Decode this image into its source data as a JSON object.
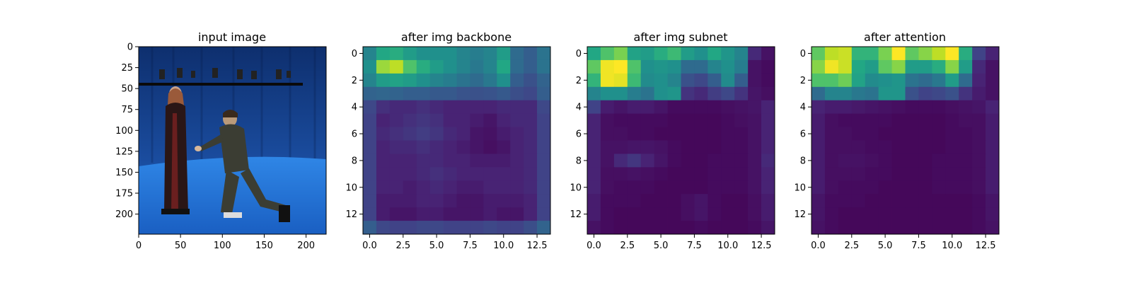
{
  "chart_data": [
    {
      "type": "image",
      "title": "input image",
      "x_ticks": [
        0,
        50,
        100,
        150,
        200
      ],
      "y_ticks": [
        0,
        25,
        50,
        75,
        100,
        125,
        150,
        175,
        200
      ],
      "xlim": [
        0,
        224
      ],
      "ylim": [
        224,
        0
      ],
      "scene": {
        "background_color": "#123a8a",
        "floor_color": "#1f6fd0",
        "figures": [
          "standing woman in dark red gown",
          "kneeling man in dark coat"
        ]
      }
    },
    {
      "type": "heatmap",
      "title": "after img backbone",
      "colormap": "viridis",
      "rows": 14,
      "cols": 14,
      "x_ticks": [
        0.0,
        2.5,
        5.0,
        7.5,
        10.0,
        12.5
      ],
      "y_ticks": [
        0,
        2,
        4,
        6,
        8,
        10,
        12
      ],
      "values": [
        [
          0.45,
          0.6,
          0.62,
          0.55,
          0.5,
          0.5,
          0.5,
          0.45,
          0.42,
          0.45,
          0.55,
          0.35,
          0.3,
          0.38
        ],
        [
          0.5,
          0.85,
          0.9,
          0.72,
          0.62,
          0.55,
          0.5,
          0.45,
          0.4,
          0.45,
          0.6,
          0.35,
          0.3,
          0.38
        ],
        [
          0.45,
          0.55,
          0.58,
          0.55,
          0.5,
          0.45,
          0.42,
          0.38,
          0.35,
          0.4,
          0.5,
          0.3,
          0.25,
          0.32
        ],
        [
          0.32,
          0.33,
          0.32,
          0.3,
          0.3,
          0.28,
          0.28,
          0.26,
          0.25,
          0.26,
          0.28,
          0.24,
          0.22,
          0.3
        ],
        [
          0.22,
          0.14,
          0.12,
          0.12,
          0.14,
          0.12,
          0.1,
          0.1,
          0.1,
          0.1,
          0.12,
          0.12,
          0.12,
          0.22
        ],
        [
          0.2,
          0.1,
          0.12,
          0.14,
          0.16,
          0.14,
          0.1,
          0.1,
          0.08,
          0.06,
          0.1,
          0.12,
          0.12,
          0.2
        ],
        [
          0.2,
          0.12,
          0.14,
          0.16,
          0.18,
          0.16,
          0.12,
          0.1,
          0.06,
          0.05,
          0.08,
          0.1,
          0.12,
          0.2
        ],
        [
          0.2,
          0.1,
          0.12,
          0.12,
          0.14,
          0.12,
          0.1,
          0.08,
          0.06,
          0.04,
          0.06,
          0.1,
          0.12,
          0.2
        ],
        [
          0.2,
          0.1,
          0.1,
          0.1,
          0.12,
          0.12,
          0.1,
          0.1,
          0.08,
          0.08,
          0.08,
          0.1,
          0.12,
          0.2
        ],
        [
          0.2,
          0.1,
          0.1,
          0.1,
          0.12,
          0.14,
          0.12,
          0.1,
          0.1,
          0.1,
          0.1,
          0.1,
          0.12,
          0.2
        ],
        [
          0.2,
          0.1,
          0.1,
          0.08,
          0.1,
          0.12,
          0.1,
          0.08,
          0.08,
          0.1,
          0.1,
          0.1,
          0.12,
          0.2
        ],
        [
          0.2,
          0.08,
          0.08,
          0.08,
          0.1,
          0.1,
          0.08,
          0.06,
          0.06,
          0.08,
          0.08,
          0.08,
          0.1,
          0.2
        ],
        [
          0.2,
          0.08,
          0.06,
          0.06,
          0.08,
          0.08,
          0.06,
          0.06,
          0.06,
          0.08,
          0.06,
          0.06,
          0.1,
          0.2
        ],
        [
          0.3,
          0.22,
          0.2,
          0.2,
          0.22,
          0.22,
          0.2,
          0.2,
          0.2,
          0.22,
          0.2,
          0.2,
          0.24,
          0.32
        ]
      ]
    },
    {
      "type": "heatmap",
      "title": "after img subnet",
      "colormap": "viridis",
      "rows": 14,
      "cols": 14,
      "x_ticks": [
        0.0,
        2.5,
        5.0,
        7.5,
        10.0,
        12.5
      ],
      "y_ticks": [
        0,
        2,
        4,
        6,
        8,
        10,
        12
      ],
      "values": [
        [
          0.6,
          0.72,
          0.8,
          0.58,
          0.55,
          0.62,
          0.68,
          0.55,
          0.5,
          0.6,
          0.52,
          0.45,
          0.12,
          0.05
        ],
        [
          0.75,
          0.98,
          1.0,
          0.72,
          0.5,
          0.52,
          0.5,
          0.35,
          0.35,
          0.45,
          0.5,
          0.42,
          0.05,
          0.03
        ],
        [
          0.65,
          0.98,
          0.96,
          0.68,
          0.48,
          0.5,
          0.45,
          0.25,
          0.22,
          0.3,
          0.48,
          0.3,
          0.05,
          0.03
        ],
        [
          0.45,
          0.5,
          0.5,
          0.42,
          0.38,
          0.5,
          0.52,
          0.15,
          0.12,
          0.18,
          0.22,
          0.15,
          0.06,
          0.04
        ],
        [
          0.2,
          0.08,
          0.06,
          0.08,
          0.08,
          0.06,
          0.03,
          0.03,
          0.03,
          0.03,
          0.04,
          0.05,
          0.06,
          0.1
        ],
        [
          0.1,
          0.04,
          0.03,
          0.03,
          0.03,
          0.03,
          0.02,
          0.02,
          0.02,
          0.02,
          0.03,
          0.04,
          0.05,
          0.1
        ],
        [
          0.1,
          0.04,
          0.04,
          0.03,
          0.03,
          0.02,
          0.02,
          0.02,
          0.02,
          0.02,
          0.03,
          0.03,
          0.05,
          0.1
        ],
        [
          0.1,
          0.05,
          0.05,
          0.06,
          0.06,
          0.05,
          0.03,
          0.02,
          0.02,
          0.02,
          0.03,
          0.03,
          0.05,
          0.1
        ],
        [
          0.1,
          0.05,
          0.12,
          0.16,
          0.1,
          0.06,
          0.03,
          0.02,
          0.02,
          0.03,
          0.03,
          0.03,
          0.05,
          0.12
        ],
        [
          0.1,
          0.04,
          0.04,
          0.05,
          0.04,
          0.03,
          0.02,
          0.02,
          0.02,
          0.03,
          0.03,
          0.03,
          0.05,
          0.1
        ],
        [
          0.1,
          0.04,
          0.03,
          0.03,
          0.03,
          0.02,
          0.02,
          0.02,
          0.02,
          0.03,
          0.03,
          0.03,
          0.05,
          0.1
        ],
        [
          0.08,
          0.03,
          0.03,
          0.03,
          0.02,
          0.02,
          0.02,
          0.04,
          0.06,
          0.03,
          0.02,
          0.02,
          0.04,
          0.08
        ],
        [
          0.08,
          0.03,
          0.02,
          0.02,
          0.02,
          0.02,
          0.02,
          0.04,
          0.06,
          0.03,
          0.02,
          0.02,
          0.04,
          0.08
        ],
        [
          0.05,
          0.03,
          0.02,
          0.02,
          0.02,
          0.02,
          0.02,
          0.02,
          0.03,
          0.02,
          0.02,
          0.02,
          0.03,
          0.06
        ]
      ]
    },
    {
      "type": "heatmap",
      "title": "after attention",
      "colormap": "viridis",
      "rows": 14,
      "cols": 14,
      "x_ticks": [
        0.0,
        2.5,
        5.0,
        7.5,
        10.0,
        12.5
      ],
      "y_ticks": [
        0,
        2,
        4,
        6,
        8,
        10,
        12
      ],
      "values": [
        [
          0.75,
          0.9,
          0.92,
          0.65,
          0.65,
          0.8,
          1.0,
          0.75,
          0.82,
          0.9,
          1.0,
          0.62,
          0.2,
          0.1
        ],
        [
          0.82,
          0.98,
          0.92,
          0.6,
          0.55,
          0.75,
          0.82,
          0.55,
          0.55,
          0.62,
          0.82,
          0.55,
          0.12,
          0.05
        ],
        [
          0.72,
          0.72,
          0.78,
          0.58,
          0.48,
          0.5,
          0.52,
          0.38,
          0.35,
          0.4,
          0.55,
          0.35,
          0.1,
          0.05
        ],
        [
          0.35,
          0.45,
          0.45,
          0.4,
          0.38,
          0.52,
          0.52,
          0.25,
          0.2,
          0.22,
          0.25,
          0.15,
          0.08,
          0.05
        ],
        [
          0.1,
          0.08,
          0.08,
          0.07,
          0.06,
          0.05,
          0.04,
          0.03,
          0.03,
          0.03,
          0.04,
          0.05,
          0.06,
          0.1
        ],
        [
          0.08,
          0.04,
          0.03,
          0.03,
          0.03,
          0.03,
          0.02,
          0.02,
          0.02,
          0.02,
          0.03,
          0.04,
          0.04,
          0.08
        ],
        [
          0.08,
          0.04,
          0.04,
          0.03,
          0.03,
          0.02,
          0.02,
          0.02,
          0.02,
          0.02,
          0.03,
          0.03,
          0.04,
          0.08
        ],
        [
          0.08,
          0.04,
          0.04,
          0.04,
          0.03,
          0.03,
          0.02,
          0.02,
          0.02,
          0.02,
          0.03,
          0.03,
          0.04,
          0.08
        ],
        [
          0.08,
          0.04,
          0.05,
          0.05,
          0.04,
          0.03,
          0.02,
          0.02,
          0.02,
          0.03,
          0.03,
          0.03,
          0.04,
          0.08
        ],
        [
          0.08,
          0.04,
          0.04,
          0.04,
          0.03,
          0.03,
          0.02,
          0.02,
          0.02,
          0.03,
          0.03,
          0.03,
          0.04,
          0.08
        ],
        [
          0.08,
          0.04,
          0.03,
          0.03,
          0.03,
          0.02,
          0.02,
          0.02,
          0.02,
          0.03,
          0.03,
          0.03,
          0.04,
          0.08
        ],
        [
          0.06,
          0.03,
          0.03,
          0.03,
          0.02,
          0.02,
          0.02,
          0.02,
          0.02,
          0.02,
          0.02,
          0.02,
          0.03,
          0.06
        ],
        [
          0.06,
          0.03,
          0.02,
          0.02,
          0.02,
          0.02,
          0.02,
          0.02,
          0.02,
          0.02,
          0.02,
          0.02,
          0.03,
          0.06
        ],
        [
          0.05,
          0.03,
          0.02,
          0.02,
          0.02,
          0.02,
          0.02,
          0.02,
          0.02,
          0.02,
          0.02,
          0.02,
          0.03,
          0.05
        ]
      ]
    }
  ]
}
